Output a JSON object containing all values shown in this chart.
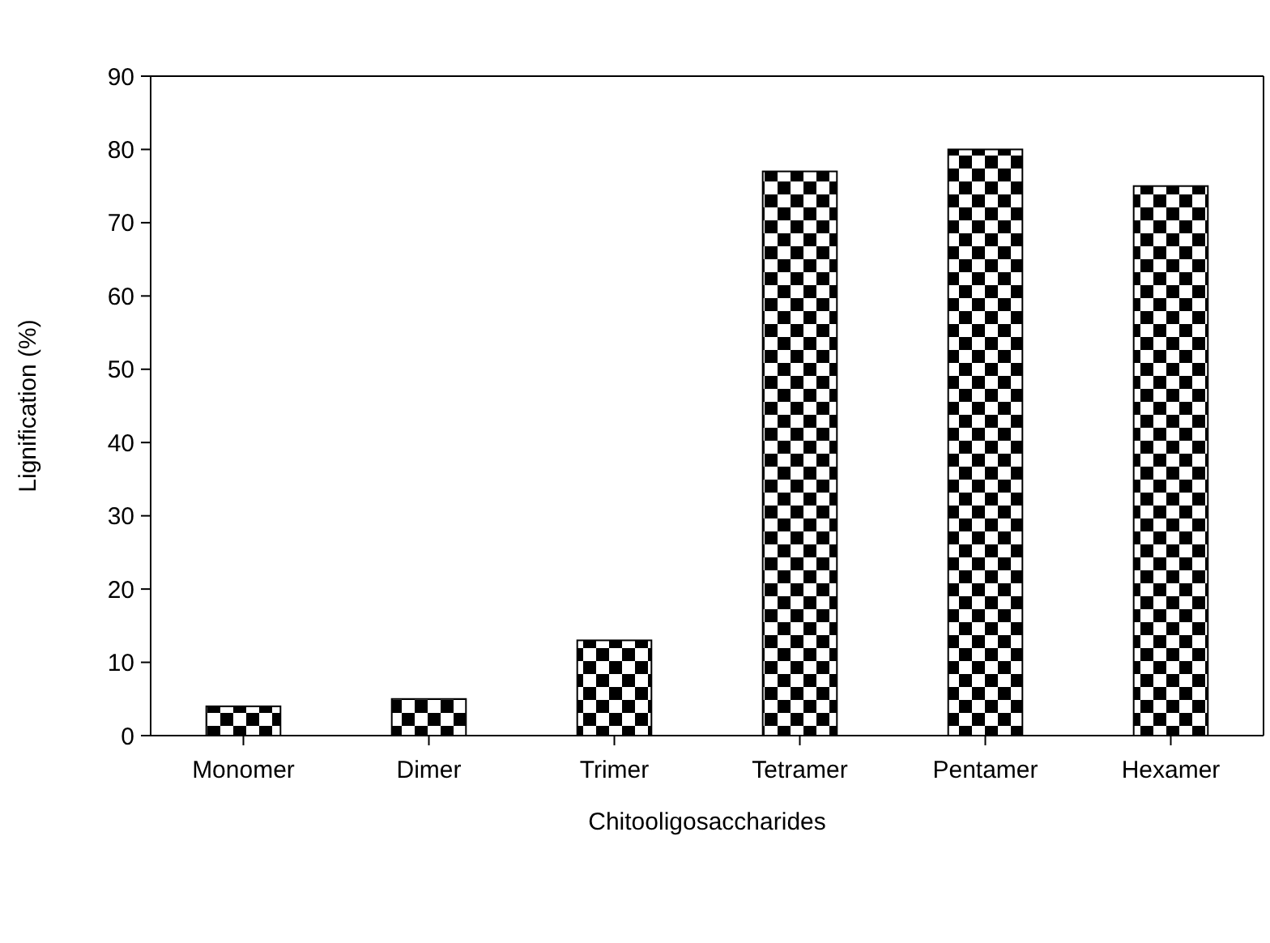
{
  "chart_data": {
    "type": "bar",
    "xlabel": "Chitooligosaccharides",
    "ylabel": "Lignification (%)",
    "categories": [
      "Monomer",
      "Dimer",
      "Trimer",
      "Tetramer",
      "Pentamer",
      "Hexamer"
    ],
    "values": [
      4,
      5,
      13,
      77,
      80,
      75
    ],
    "color": "#000000",
    "ylim": [
      0,
      90
    ],
    "yticks": [
      0,
      10,
      20,
      30,
      40,
      50,
      60,
      70,
      80,
      90
    ],
    "grid": false
  }
}
